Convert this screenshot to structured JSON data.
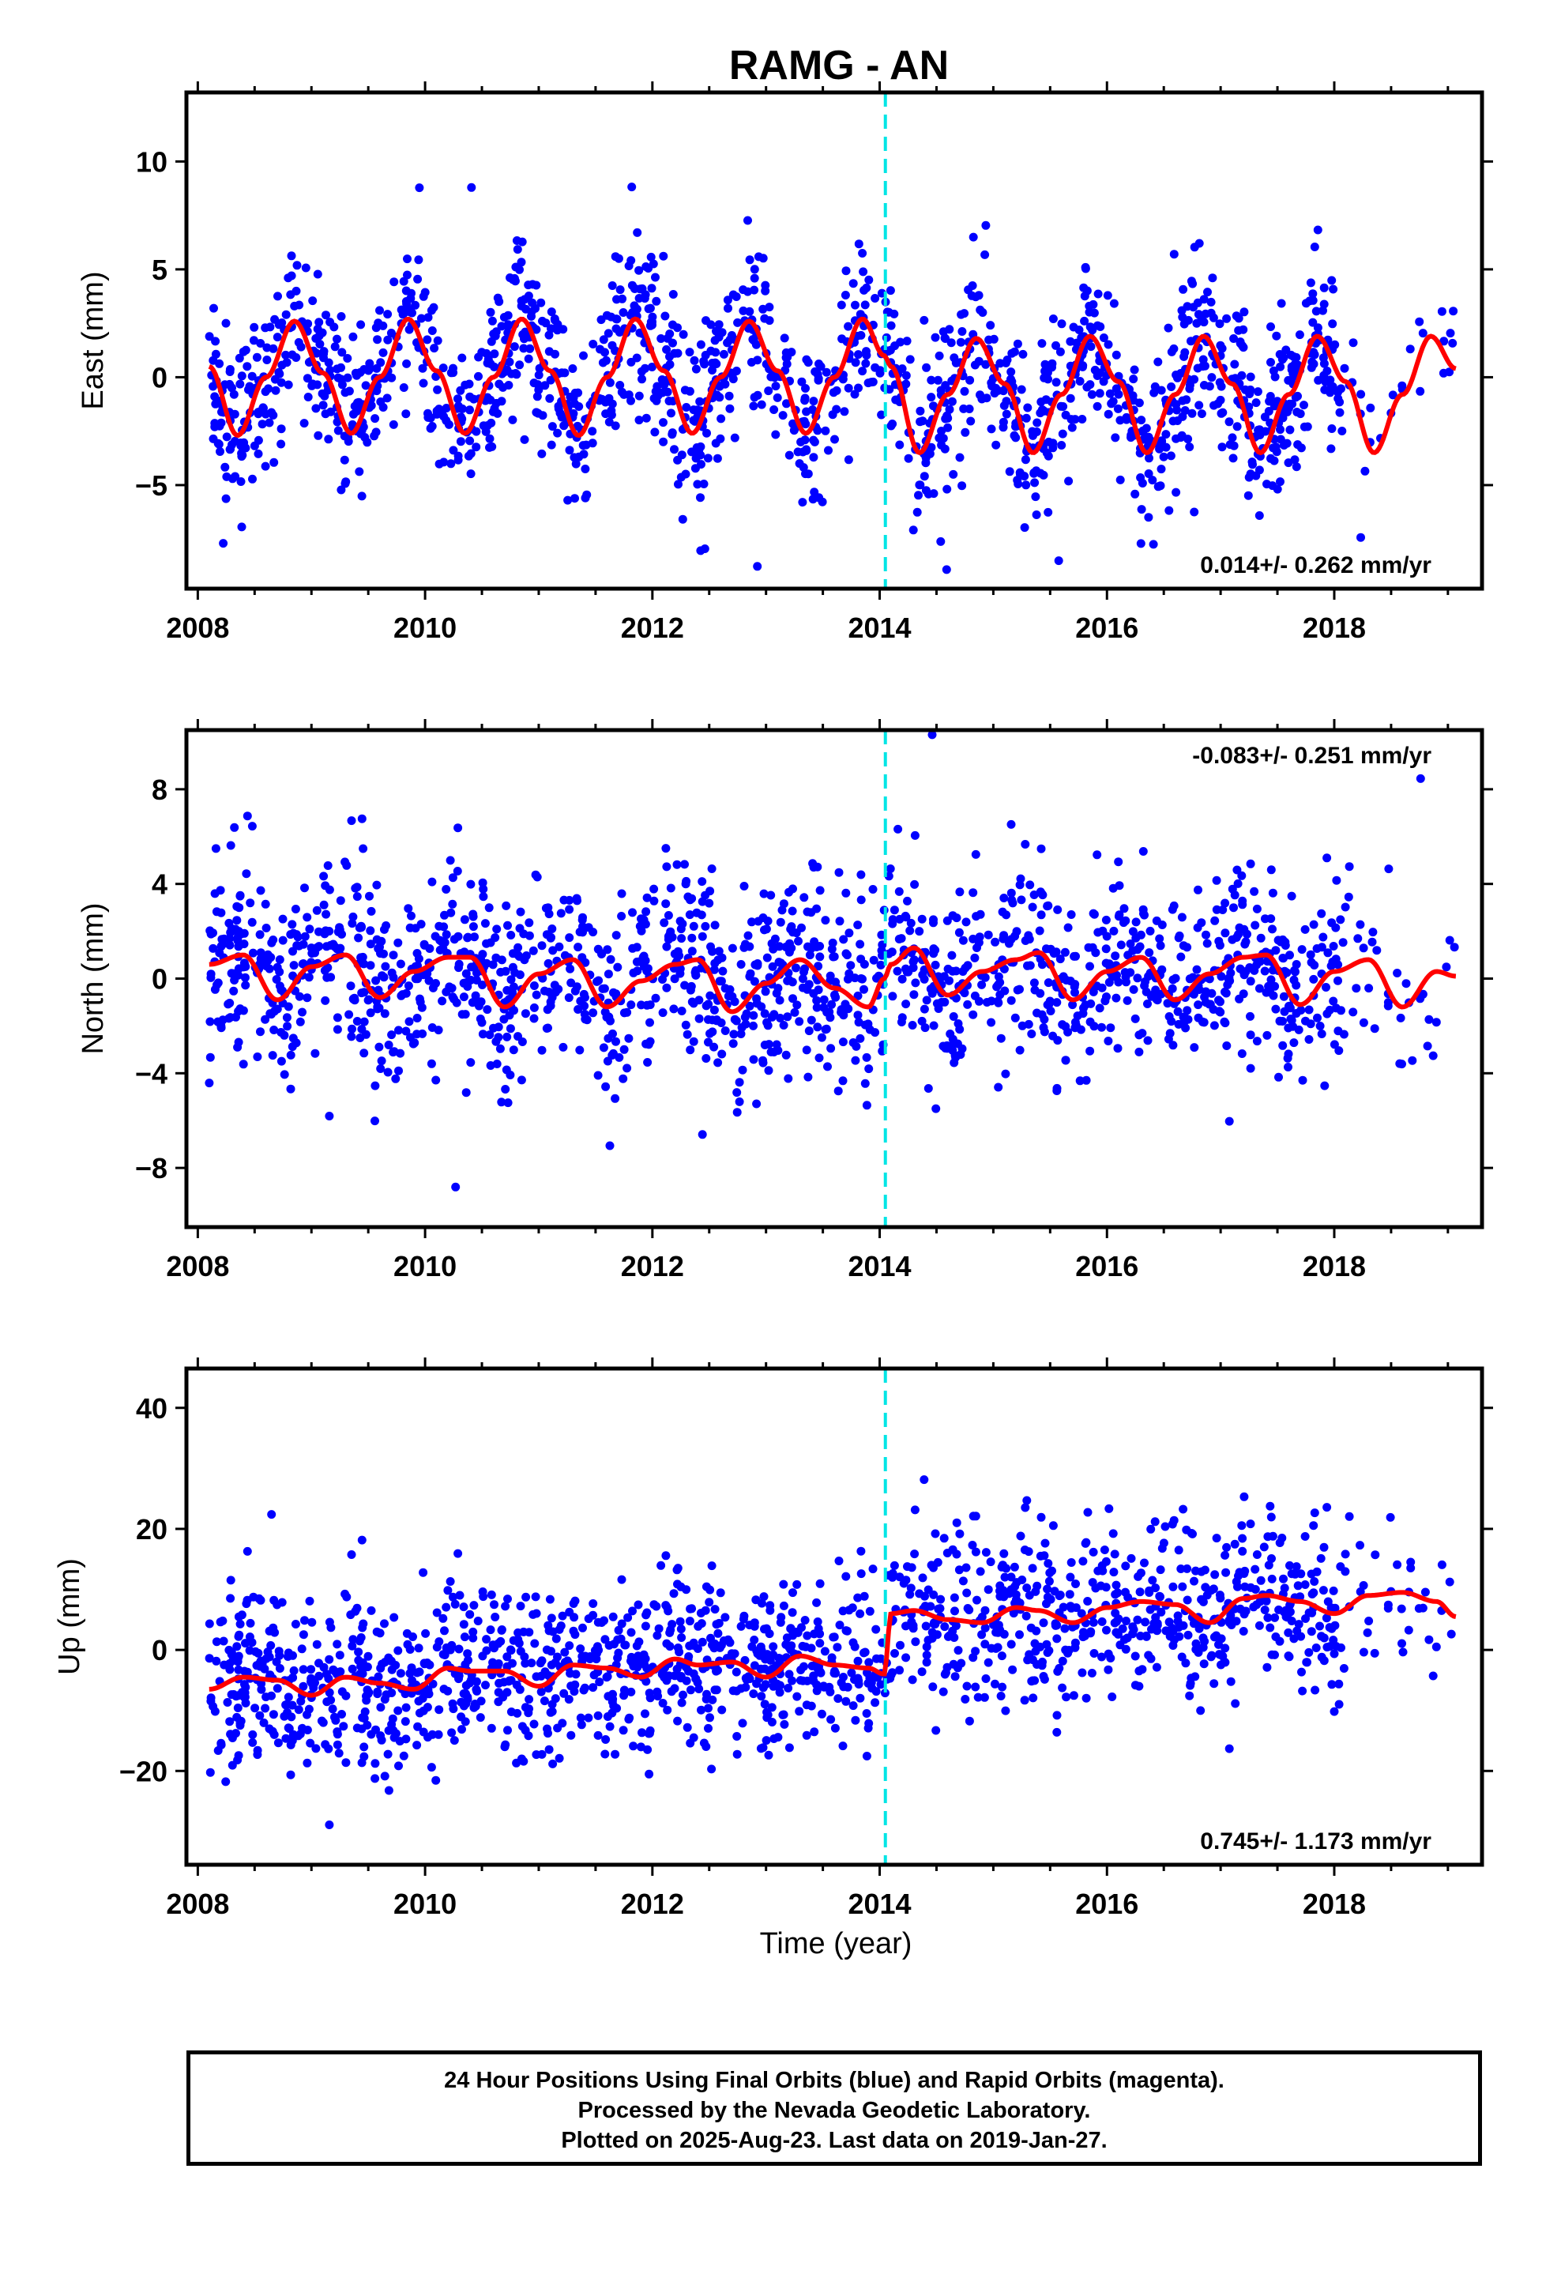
{
  "title": "RAMG - AN",
  "xlabel": "Time (year)",
  "footer": {
    "line1": "24 Hour Positions Using Final Orbits (blue) and Rapid Orbits (magenta).",
    "line2": "Processed by the Nevada Geodetic Laboratory.",
    "line3": "Plotted on 2025-Aug-23. Last data on 2019-Jan-27."
  },
  "colors": {
    "points": "#0000ff",
    "fit": "#ff0000",
    "event": "#00e5e5",
    "frame": "#000000"
  },
  "chart_data": [
    {
      "type": "scatter",
      "ylabel": "East (mm)",
      "xlim": [
        2007.9,
        2019.3
      ],
      "ylim": [
        -9.8,
        13.2
      ],
      "yticks": [
        -5,
        0,
        5,
        10
      ],
      "xticks": [
        2008,
        2010,
        2012,
        2014,
        2016,
        2018
      ],
      "rate_text": "0.014+/- 0.262 mm/yr",
      "rate_position": "bottom-right",
      "event_line_x": 2014.05,
      "data_start": 2008.1,
      "data_end": 2019.07,
      "scatter_sigma": 1.9,
      "fit": {
        "x": [
          2008.1,
          2008.35,
          2008.6,
          2008.85,
          2009.1,
          2009.35,
          2009.6,
          2009.85,
          2010.1,
          2010.35,
          2010.6,
          2010.85,
          2011.1,
          2011.35,
          2011.6,
          2011.85,
          2012.1,
          2012.35,
          2012.6,
          2012.85,
          2013.1,
          2013.35,
          2013.6,
          2013.85,
          2014.04,
          2014.1,
          2014.35,
          2014.6,
          2014.85,
          2015.1,
          2015.35,
          2015.6,
          2015.85,
          2016.1,
          2016.35,
          2016.6,
          2016.85,
          2017.1,
          2017.35,
          2017.6,
          2017.85,
          2018.1,
          2018.35,
          2018.6,
          2018.85,
          2019.07
        ],
        "y": [
          0.5,
          -2.7,
          0.0,
          2.6,
          0.2,
          -2.6,
          0.0,
          2.7,
          0.3,
          -2.6,
          0.0,
          2.7,
          0.3,
          -2.7,
          0.0,
          2.7,
          0.3,
          -2.6,
          0.0,
          2.6,
          0.3,
          -2.6,
          0.0,
          2.7,
          1.0,
          0.5,
          -3.5,
          -0.8,
          1.8,
          -0.3,
          -3.5,
          -0.8,
          1.9,
          -0.2,
          -3.5,
          -0.8,
          1.9,
          -0.3,
          -3.5,
          -0.8,
          1.9,
          -0.2,
          -3.5,
          -0.8,
          1.9,
          0.4
        ]
      }
    },
    {
      "type": "scatter",
      "ylabel": "North (mm)",
      "xlim": [
        2007.9,
        2019.3
      ],
      "ylim": [
        -10.5,
        10.5
      ],
      "yticks": [
        -8,
        -4,
        0,
        4,
        8
      ],
      "xticks": [
        2008,
        2010,
        2012,
        2014,
        2016,
        2018
      ],
      "rate_text": "-0.083+/- 0.251 mm/yr",
      "rate_position": "top-right",
      "event_line_x": 2014.05,
      "data_start": 2008.1,
      "data_end": 2019.07,
      "scatter_sigma": 2.0,
      "fit": {
        "x": [
          2008.1,
          2008.4,
          2008.7,
          2009.0,
          2009.3,
          2009.6,
          2009.9,
          2010.2,
          2010.4,
          2010.7,
          2011.0,
          2011.3,
          2011.6,
          2011.9,
          2012.2,
          2012.4,
          2012.7,
          2013.0,
          2013.3,
          2013.6,
          2013.9,
          2014.04,
          2014.1,
          2014.3,
          2014.6,
          2014.9,
          2015.2,
          2015.4,
          2015.7,
          2016.0,
          2016.3,
          2016.6,
          2016.9,
          2017.2,
          2017.4,
          2017.7,
          2018.0,
          2018.3,
          2018.6,
          2018.9,
          2019.07
        ],
        "y": [
          0.6,
          1.0,
          -0.9,
          0.5,
          1.0,
          -0.8,
          0.3,
          0.9,
          0.9,
          -1.2,
          0.2,
          0.8,
          -1.2,
          -0.1,
          0.6,
          0.8,
          -1.4,
          -0.2,
          0.8,
          -0.4,
          -1.2,
          0.0,
          0.6,
          1.3,
          -0.7,
          0.3,
          0.8,
          1.1,
          -0.9,
          0.3,
          0.9,
          -0.9,
          0.2,
          0.9,
          1.0,
          -1.1,
          0.3,
          0.8,
          -1.2,
          0.3,
          0.1
        ]
      }
    },
    {
      "type": "scatter",
      "ylabel": "Up (mm)",
      "xlim": [
        2007.9,
        2019.3
      ],
      "ylim": [
        -35.5,
        46.5
      ],
      "yticks": [
        -20,
        0,
        20,
        40
      ],
      "xticks": [
        2008,
        2010,
        2012,
        2014,
        2016,
        2018
      ],
      "rate_text": "0.745+/- 1.173 mm/yr",
      "rate_position": "bottom-right",
      "event_line_x": 2014.05,
      "data_start": 2008.1,
      "data_end": 2019.07,
      "scatter_sigma": 7.0,
      "fit": {
        "x": [
          2008.1,
          2008.4,
          2008.7,
          2009.0,
          2009.3,
          2009.6,
          2009.9,
          2010.2,
          2010.4,
          2010.7,
          2011.0,
          2011.3,
          2011.6,
          2011.9,
          2012.2,
          2012.4,
          2012.7,
          2013.0,
          2013.3,
          2013.6,
          2013.9,
          2014.04,
          2014.1,
          2014.3,
          2014.6,
          2014.9,
          2015.2,
          2015.4,
          2015.7,
          2016.0,
          2016.3,
          2016.6,
          2016.9,
          2017.2,
          2017.4,
          2017.7,
          2018.0,
          2018.3,
          2018.6,
          2018.9,
          2019.07
        ],
        "y": [
          -6.5,
          -4.5,
          -5.0,
          -7.5,
          -4.5,
          -5.5,
          -6.5,
          -3.0,
          -3.5,
          -3.5,
          -6.0,
          -2.5,
          -3.0,
          -4.5,
          -1.5,
          -2.5,
          -2.0,
          -4.5,
          -1.0,
          -2.5,
          -3.0,
          -4.0,
          6.0,
          6.5,
          5.0,
          4.5,
          7.0,
          6.5,
          4.5,
          7.0,
          8.0,
          7.5,
          4.5,
          8.5,
          9.0,
          8.0,
          6.0,
          9.0,
          9.5,
          8.0,
          5.5
        ]
      }
    }
  ]
}
